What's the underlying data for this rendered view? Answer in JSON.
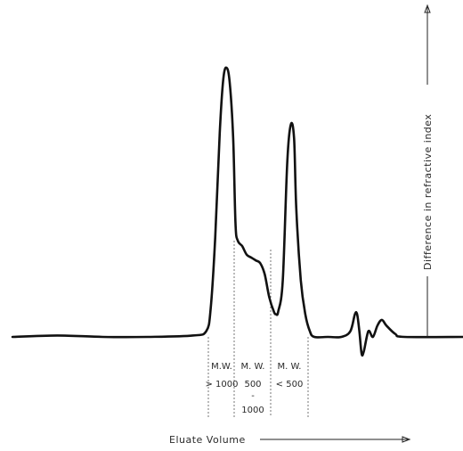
{
  "chart_data": {
    "type": "line",
    "xlabel": "Eluate Volume",
    "ylabel": "Difference in refractive index",
    "xlim": [
      0,
      100
    ],
    "ylim": [
      0,
      100
    ],
    "series": [
      {
        "values": [
          [
            0,
            0
          ],
          [
            10,
            0.5
          ],
          [
            20,
            0
          ],
          [
            30,
            0
          ],
          [
            40,
            0.5
          ],
          [
            43,
            2
          ],
          [
            44,
            10
          ],
          [
            45,
            35
          ],
          [
            46,
            72
          ],
          [
            46.8,
            91
          ],
          [
            47.5,
            95
          ],
          [
            48.2,
            90
          ],
          [
            49,
            70
          ],
          [
            49.5,
            40
          ],
          [
            50,
            34
          ],
          [
            51,
            32
          ],
          [
            52,
            29
          ],
          [
            53,
            28
          ],
          [
            54,
            27
          ],
          [
            55,
            26
          ],
          [
            56,
            22
          ],
          [
            57,
            14
          ],
          [
            58,
            9
          ],
          [
            58.5,
            8
          ],
          [
            59,
            9
          ],
          [
            60,
            20
          ],
          [
            61,
            62
          ],
          [
            61.8,
            75
          ],
          [
            62.5,
            70
          ],
          [
            63,
            45
          ],
          [
            64,
            20
          ],
          [
            65,
            8
          ],
          [
            66,
            2
          ],
          [
            67,
            0
          ],
          [
            70,
            0
          ],
          [
            73,
            0
          ],
          [
            75,
            2
          ],
          [
            76,
            8
          ],
          [
            76.5,
            8
          ],
          [
            77,
            2
          ],
          [
            77.5,
            -6
          ],
          [
            78,
            -5
          ],
          [
            79,
            2
          ],
          [
            80,
            0
          ],
          [
            81,
            4
          ],
          [
            82,
            6
          ],
          [
            83,
            4
          ],
          [
            85,
            1
          ],
          [
            87,
            0
          ],
          [
            100,
            0
          ]
        ]
      }
    ],
    "annotations": [
      {
        "id": "mw1",
        "lines": [
          "M.W.",
          "> 1000"
        ]
      },
      {
        "id": "mw2",
        "lines": [
          "M. W.",
          "500",
          "-",
          "1000"
        ]
      },
      {
        "id": "mw3",
        "lines": [
          "M. W.",
          "< 500"
        ]
      }
    ]
  }
}
